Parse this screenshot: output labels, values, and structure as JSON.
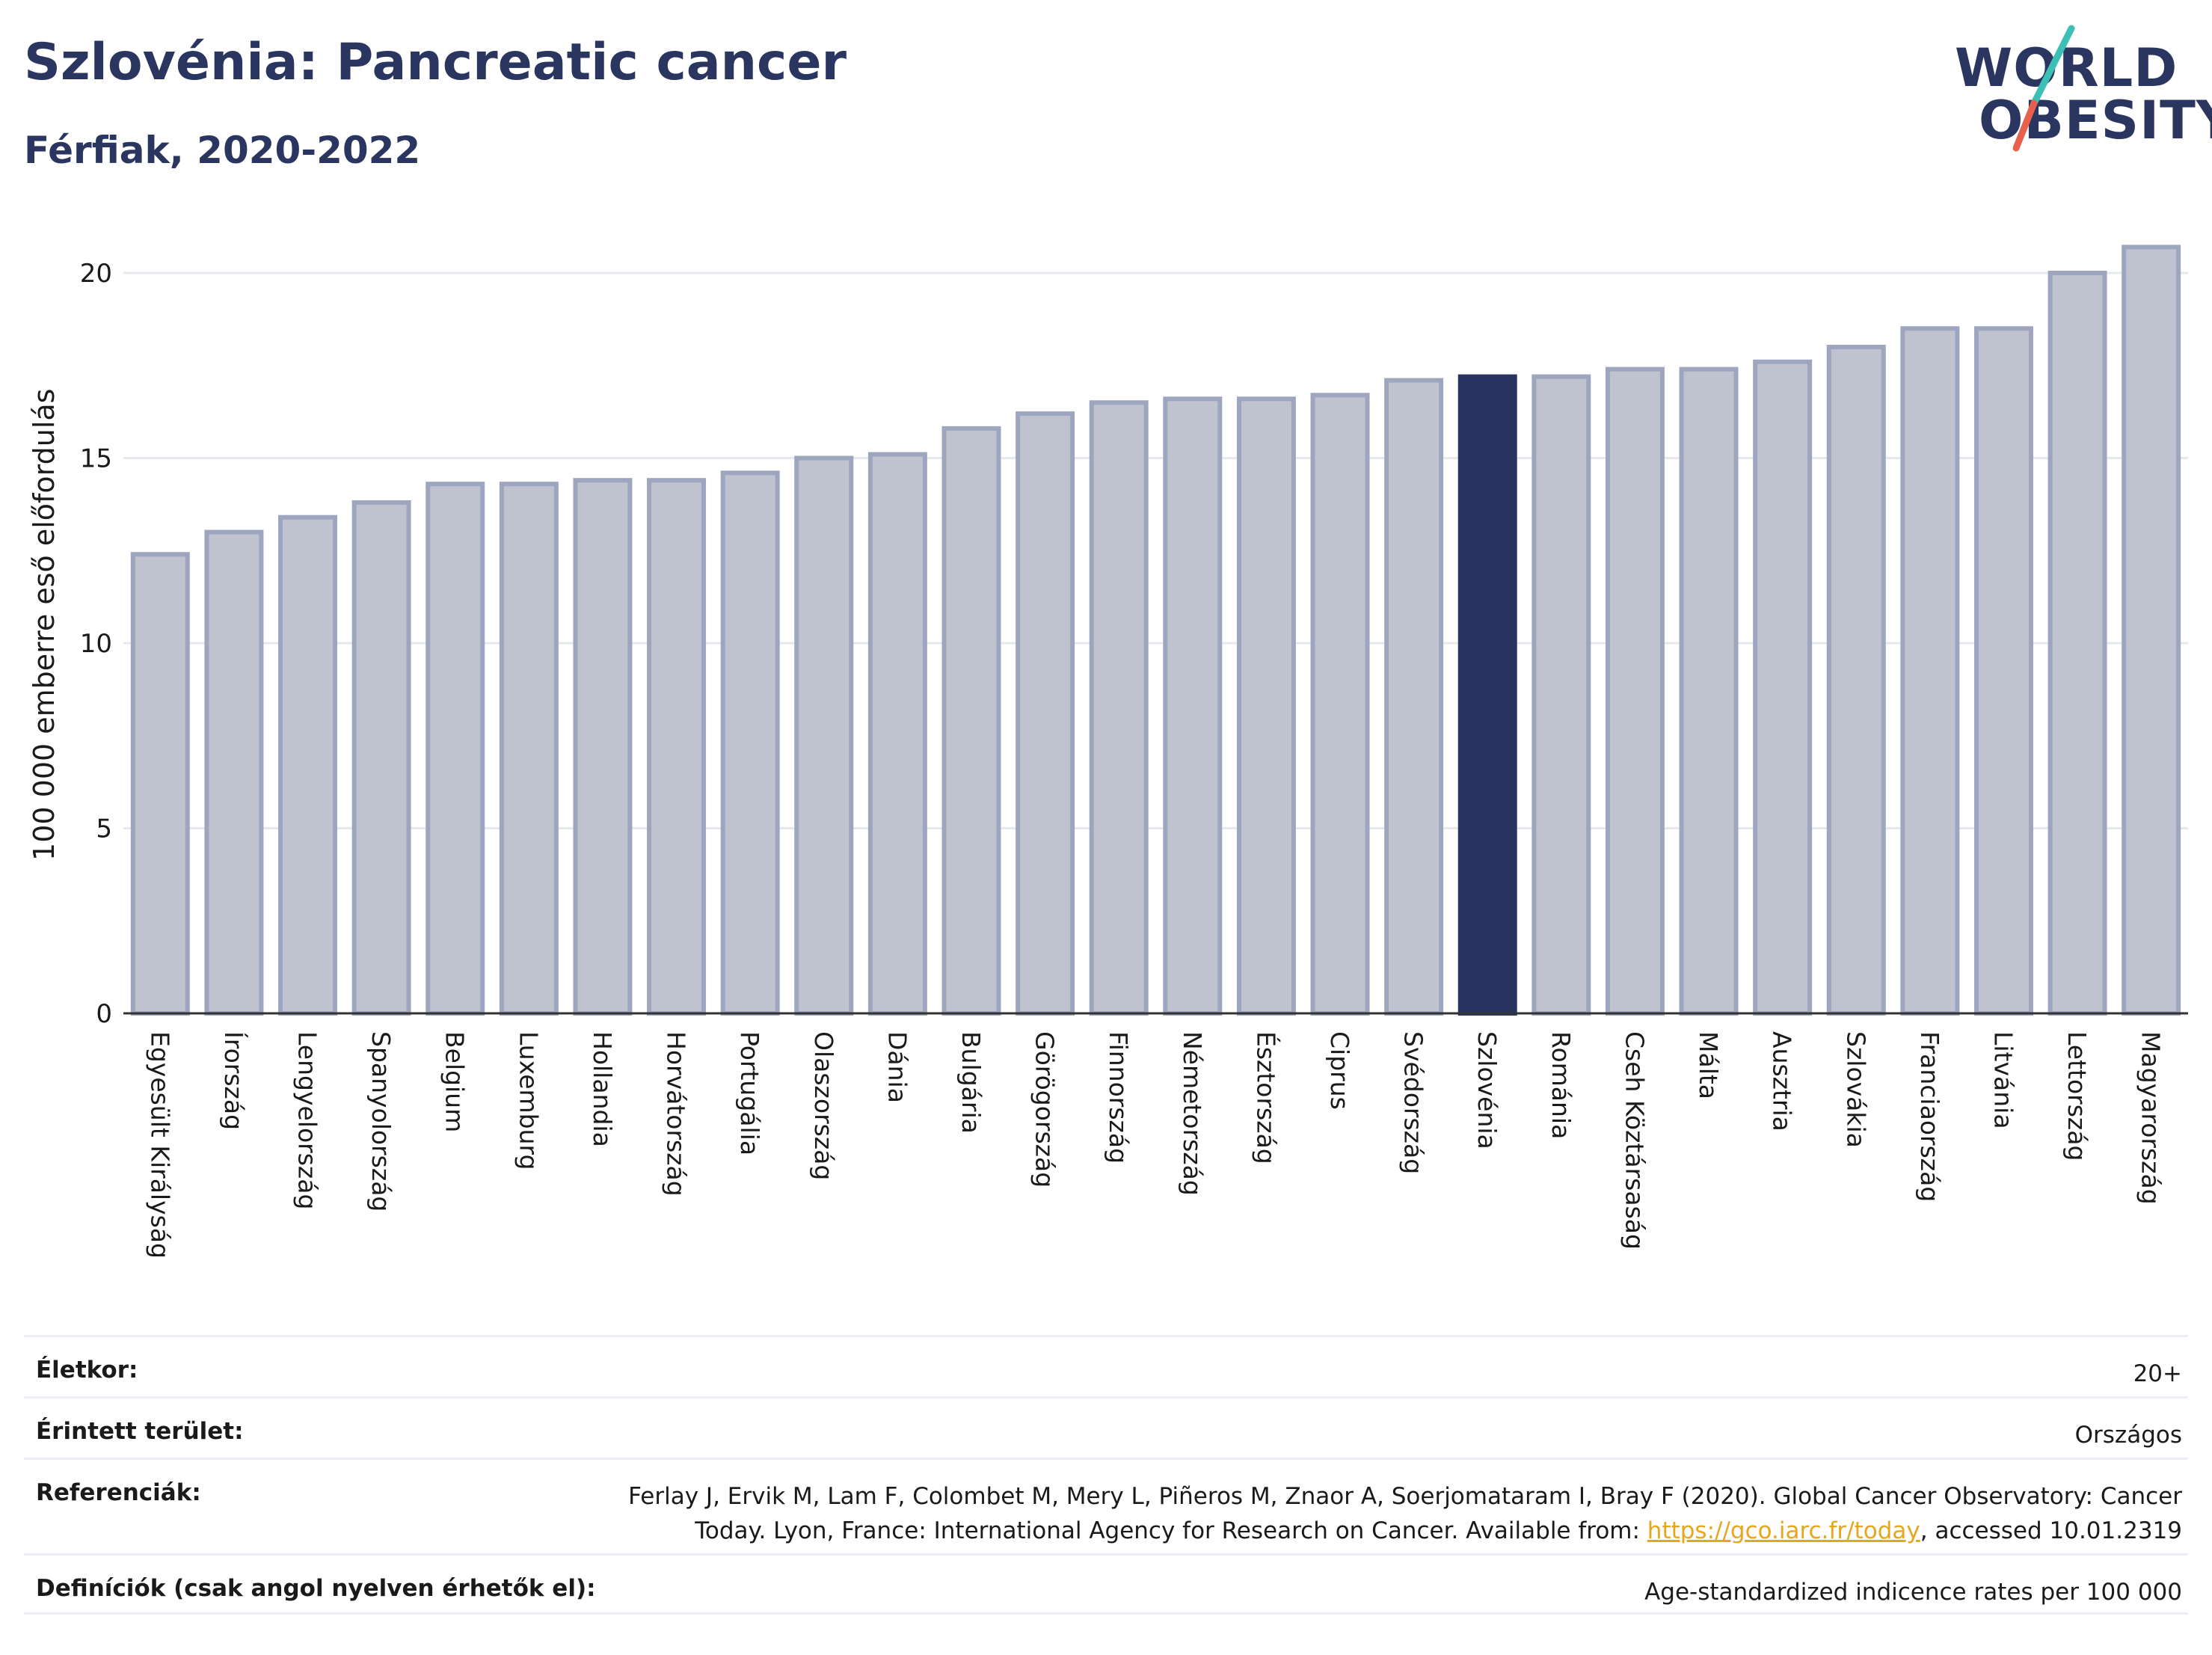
{
  "header": {
    "title": "Szlovénia: Pancreatic cancer",
    "subtitle": "Férfiak, 2020-2022"
  },
  "logo": {
    "line1": "WORLD",
    "line2": "OBESITY",
    "accent_teal": "#3cbfb4",
    "accent_red": "#e8604c"
  },
  "chart_data": {
    "type": "bar",
    "ylabel": "100 000 emberre eső előfordulás",
    "xlabel": "",
    "ylim": [
      0,
      21
    ],
    "yticks": [
      0,
      5,
      10,
      15,
      20
    ],
    "grid": true,
    "highlight_category": "Szlovénia",
    "colors": {
      "bar": "#bfc3d0",
      "bar_edge": "#9ea5be",
      "highlight": "#293560",
      "grid": "#e6e8ee",
      "axis": "#333333"
    },
    "categories": [
      "Egyesült Királyság",
      "Írország",
      "Lengyelország",
      "Spanyolország",
      "Belgium",
      "Luxemburg",
      "Hollandia",
      "Horvátország",
      "Portugália",
      "Olaszország",
      "Dánia",
      "Bulgária",
      "Görögország",
      "Finnország",
      "Németország",
      "Észtország",
      "Ciprus",
      "Svédország",
      "Szlovénia",
      "Románia",
      "Cseh Köztársaság",
      "Málta",
      "Ausztria",
      "Szlovákia",
      "Franciaország",
      "Litvánia",
      "Lettország",
      "Magyarország"
    ],
    "values": [
      12.4,
      13.0,
      13.4,
      13.8,
      14.3,
      14.3,
      14.4,
      14.4,
      14.6,
      15.0,
      15.1,
      15.8,
      16.2,
      16.5,
      16.6,
      16.6,
      16.7,
      17.1,
      17.2,
      17.2,
      17.4,
      17.4,
      17.6,
      18.0,
      18.5,
      18.5,
      20.0,
      20.7
    ]
  },
  "info": {
    "rows": [
      {
        "label": "Életkor:",
        "value": "20+"
      },
      {
        "label": "Érintett terület:",
        "value": "Országos"
      },
      {
        "label": "Referenciák:",
        "value_line1": "Ferlay J, Ervik M, Lam F, Colombet M, Mery L, Piñeros M, Znaor A, Soerjomataram I, Bray F (2020). Global Cancer Observatory: Cancer",
        "value_line2_pre": "Today. Lyon, France: International Agency for Research on Cancer. Available from: ",
        "value_link": "https://gco.iarc.fr/today",
        "value_line2_post": ", accessed 10.01.2319"
      },
      {
        "label": "Definíciók (csak angol nyelven érhetők el):",
        "value": "Age-standardized indicence rates per 100 000"
      }
    ]
  }
}
